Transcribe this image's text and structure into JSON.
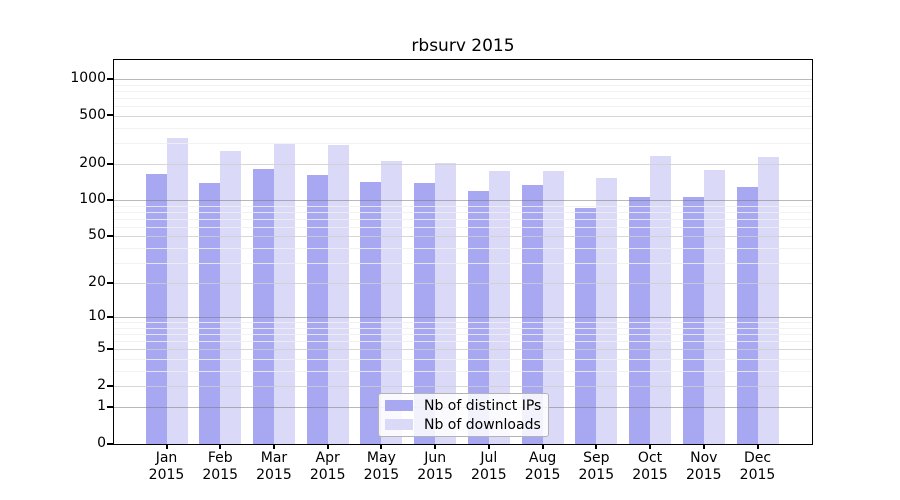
{
  "chart_data": {
    "type": "bar",
    "title": "rbsurv 2015",
    "categories": [
      "Jan",
      "Feb",
      "Mar",
      "Apr",
      "May",
      "Jun",
      "Jul",
      "Aug",
      "Sep",
      "Oct",
      "Nov",
      "Dec"
    ],
    "x_tick_year": "2015",
    "series": [
      {
        "name": "Nb of distinct IPs",
        "color": "#a8a8f2",
        "values": [
          166,
          138,
          183,
          163,
          141,
          138,
          119,
          135,
          87,
          106,
          107,
          129
        ]
      },
      {
        "name": "Nb of downloads",
        "color": "#dadaf8",
        "values": [
          331,
          255,
          290,
          285,
          212,
          205,
          176,
          176,
          152,
          234,
          180,
          227
        ]
      }
    ],
    "y_axis": {
      "scale": "log1p",
      "max": 1440,
      "major_ticks": [
        0,
        1,
        2,
        5,
        10,
        20,
        50,
        100,
        200,
        500,
        1000
      ],
      "minor_ticks": [
        3,
        4,
        6,
        7,
        8,
        9,
        30,
        40,
        60,
        70,
        80,
        90,
        300,
        400,
        600,
        700,
        800,
        900
      ]
    },
    "grid": true,
    "legend_position": "lower center"
  },
  "colors": {
    "bar_distinct_ips": "#a8a8f2",
    "bar_downloads": "#dadaf8",
    "grid_decade": "#bcbcbc",
    "grid_mid": "#dcdcdc",
    "grid_minor": "#f0f0f0",
    "spine": "#000000",
    "legend_border": "#b3b3b3"
  }
}
